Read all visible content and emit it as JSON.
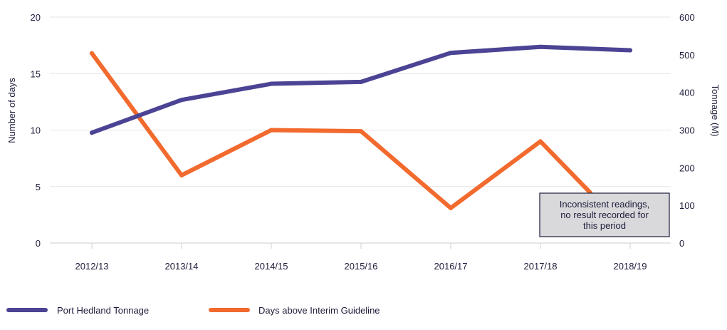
{
  "chart_data": {
    "type": "line",
    "categories": [
      "2012/13",
      "2013/14",
      "2014/15",
      "2015/16",
      "2016/17",
      "2017/18",
      "2018/19"
    ],
    "y_left": {
      "label": "Number of days",
      "ticks": [
        0,
        5,
        10,
        15,
        20
      ],
      "range": [
        0,
        20
      ]
    },
    "y_right": {
      "label": "Tonnage (M)",
      "ticks": [
        0,
        100,
        200,
        300,
        400,
        500,
        600
      ],
      "range": [
        0,
        600
      ]
    },
    "grid": true,
    "legend_position": "bottom-left",
    "series": [
      {
        "name": "Port Hedland Tonnage",
        "axis": "right",
        "color": "#4b4494",
        "values": [
          293,
          380,
          423,
          428,
          505,
          521,
          512
        ]
      },
      {
        "name": "Days above Interim Guideline",
        "axis": "left",
        "color": "#f26a2e",
        "values": [
          16.8,
          6.0,
          10.0,
          9.9,
          3.1,
          9.0,
          null
        ]
      }
    ],
    "annotation": {
      "lines": [
        "Inconsistent readings,",
        "no result recorded for",
        "this period"
      ]
    }
  }
}
